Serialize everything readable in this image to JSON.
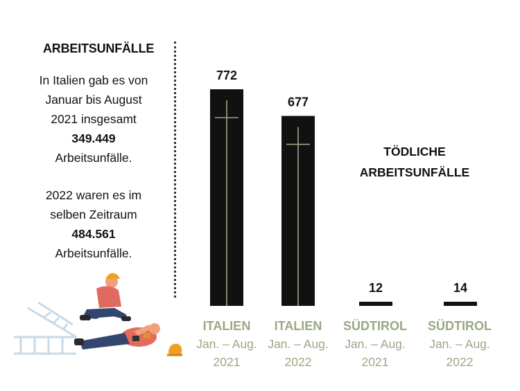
{
  "text_block": {
    "heading": "ARBEITSUNFÄLLE",
    "p1_line1": "In Italien gab es von",
    "p1_line2": "Januar bis August",
    "p1_line3": "2021 insgesamt",
    "p1_value": "349.449",
    "p1_line5": "Arbeitsunfälle.",
    "p2_line1": "2022 waren es im",
    "p2_line2": "selben Zeitraum",
    "p2_value": "484.561",
    "p2_line4": "Arbeitsunfälle."
  },
  "fatal_title_line1": "TÖDLICHE",
  "fatal_title_line2": "ARBEITSUNFÄLLE",
  "colors": {
    "bar": "#111111",
    "cross": "#9aa884",
    "category": "#9aa884"
  },
  "chart_data": {
    "type": "bar",
    "title": "TÖDLICHE ARBEITSUNFÄLLE",
    "categories": [
      {
        "region": "ITALIEN",
        "period": "Jan. – Aug.",
        "year": "2021"
      },
      {
        "region": "ITALIEN",
        "period": "Jan. – Aug.",
        "year": "2022"
      },
      {
        "region": "SÜDTIROL",
        "period": "Jan. – Aug.",
        "year": "2021"
      },
      {
        "region": "SÜDTIROL",
        "period": "Jan. – Aug.",
        "year": "2022"
      }
    ],
    "values": [
      772,
      677,
      12,
      14
    ],
    "value_labels": [
      "772",
      "677",
      "12",
      "14"
    ],
    "ylim": [
      0,
      772
    ],
    "grid": false,
    "legend": "none"
  }
}
